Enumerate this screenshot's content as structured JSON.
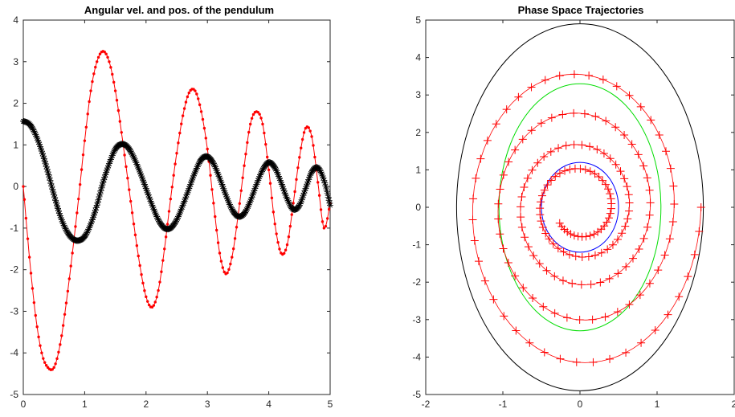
{
  "chart_data": [
    {
      "type": "line",
      "title": "Angular vel. and pos. of the pendulum",
      "xlabel": "",
      "ylabel": "",
      "xlim": [
        0,
        5
      ],
      "ylim": [
        -5,
        4
      ],
      "xticks": [
        "0",
        "1",
        "2",
        "3",
        "4",
        "5"
      ],
      "yticks": [
        "-5",
        "-4",
        "-3",
        "-2",
        "-1",
        "0",
        "1",
        "2",
        "3",
        "4"
      ],
      "grid": false,
      "legend": "none",
      "series": [
        {
          "marker": "dot",
          "color": "#ff0000",
          "x": [
            0,
            0.1,
            0.2,
            0.3,
            0.4,
            0.5,
            0.6,
            0.7,
            0.8,
            0.9,
            1.0,
            1.1,
            1.2,
            1.3,
            1.4,
            1.5,
            1.6,
            1.7,
            1.8,
            1.9,
            2.0,
            2.1,
            2.2,
            2.3,
            2.4,
            2.5,
            2.6,
            2.7,
            2.8,
            2.9,
            3.0,
            3.1,
            3.2,
            3.3,
            3.4,
            3.5,
            3.6,
            3.7,
            3.8,
            3.9,
            4.0,
            4.1,
            4.2,
            4.3,
            4.4,
            4.5,
            4.6,
            4.7,
            4.8,
            4.9,
            5.0
          ],
          "y": [
            0,
            -1.7,
            -3.1,
            -4.0,
            -4.35,
            -4.35,
            -3.8,
            -2.8,
            -1.6,
            -0.3,
            1.1,
            2.3,
            3.0,
            3.25,
            3.0,
            2.3,
            1.3,
            0.2,
            -0.9,
            -1.9,
            -2.65,
            -2.9,
            -2.5,
            -1.5,
            -0.3,
            0.8,
            1.7,
            2.25,
            2.3,
            1.8,
            0.9,
            -0.4,
            -1.6,
            -2.1,
            -1.7,
            -0.7,
            0.5,
            1.5,
            1.8,
            1.5,
            0.4,
            -0.9,
            -1.6,
            -1.4,
            -0.4,
            0.7,
            1.4,
            1.2,
            0.1,
            -1.0,
            -0.4
          ]
        },
        {
          "marker": "asterisk",
          "color": "#000000",
          "x": [
            0,
            0.1,
            0.2,
            0.3,
            0.4,
            0.5,
            0.6,
            0.7,
            0.8,
            0.9,
            1.0,
            1.1,
            1.2,
            1.3,
            1.4,
            1.5,
            1.6,
            1.7,
            1.8,
            1.9,
            2.0,
            2.1,
            2.2,
            2.3,
            2.4,
            2.5,
            2.6,
            2.7,
            2.8,
            2.9,
            3.0,
            3.1,
            3.2,
            3.3,
            3.4,
            3.5,
            3.6,
            3.7,
            3.8,
            3.9,
            4.0,
            4.1,
            4.2,
            4.3,
            4.4,
            4.5,
            4.6,
            4.7,
            4.8,
            4.9,
            5.0
          ],
          "y": [
            1.57,
            1.5,
            1.25,
            0.85,
            0.35,
            -0.2,
            -0.7,
            -1.05,
            -1.25,
            -1.3,
            -1.2,
            -0.9,
            -0.45,
            0.1,
            0.55,
            0.9,
            1.02,
            0.95,
            0.7,
            0.35,
            -0.05,
            -0.45,
            -0.8,
            -1.0,
            -1.0,
            -0.8,
            -0.45,
            -0.05,
            0.35,
            0.65,
            0.72,
            0.55,
            0.2,
            -0.2,
            -0.55,
            -0.72,
            -0.65,
            -0.35,
            0.05,
            0.4,
            0.58,
            0.45,
            0.1,
            -0.3,
            -0.55,
            -0.45,
            -0.05,
            0.35,
            0.45,
            0.15,
            -0.45
          ]
        }
      ]
    },
    {
      "type": "line",
      "title": "Phase Space Trajectories",
      "xlabel": "",
      "ylabel": "",
      "xlim": [
        -2,
        2
      ],
      "ylim": [
        -5,
        5
      ],
      "xticks": [
        "-2",
        "-1",
        "0",
        "1",
        "2"
      ],
      "yticks": [
        "-5",
        "-4",
        "-3",
        "-2",
        "-1",
        "0",
        "1",
        "2",
        "3",
        "4",
        "5"
      ],
      "grid": false,
      "legend": "none",
      "series": [
        {
          "shape": "ellipse",
          "color": "#000000",
          "cx": 0,
          "cy": 0,
          "rx": 1.6,
          "ry": 4.9
        },
        {
          "shape": "ellipse",
          "color": "#00dd00",
          "cx": 0,
          "cy": 0,
          "rx": 1.05,
          "ry": 3.3
        },
        {
          "shape": "ellipse",
          "color": "#0000ff",
          "cx": 0,
          "cy": 0,
          "rx": 0.5,
          "ry": 1.2
        },
        {
          "shape": "spiral",
          "marker": "plus",
          "color": "#ff0000",
          "x_start": 1.57,
          "y_start": 0,
          "x_end": 0.5,
          "y_min": -4.38,
          "turns": 4.4
        }
      ]
    }
  ]
}
